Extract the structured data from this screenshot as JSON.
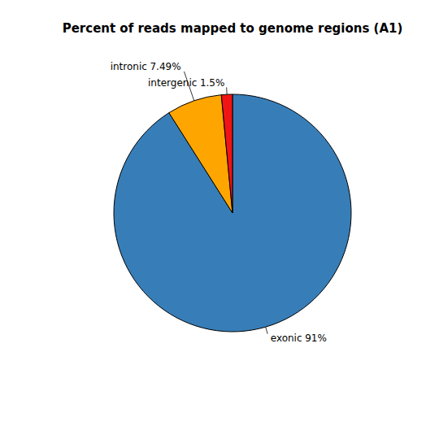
{
  "chart_data": {
    "type": "pie",
    "title": "Percent of reads mapped to genome regions (A1)",
    "categories": [
      "exonic",
      "intronic",
      "intergenic"
    ],
    "values": [
      91,
      7.49,
      1.5
    ],
    "value_labels": [
      "91%",
      "7.49%",
      "1.5%"
    ],
    "colors": [
      "#377eb8",
      "#ffa500",
      "#f01414"
    ],
    "data_labels": true
  }
}
